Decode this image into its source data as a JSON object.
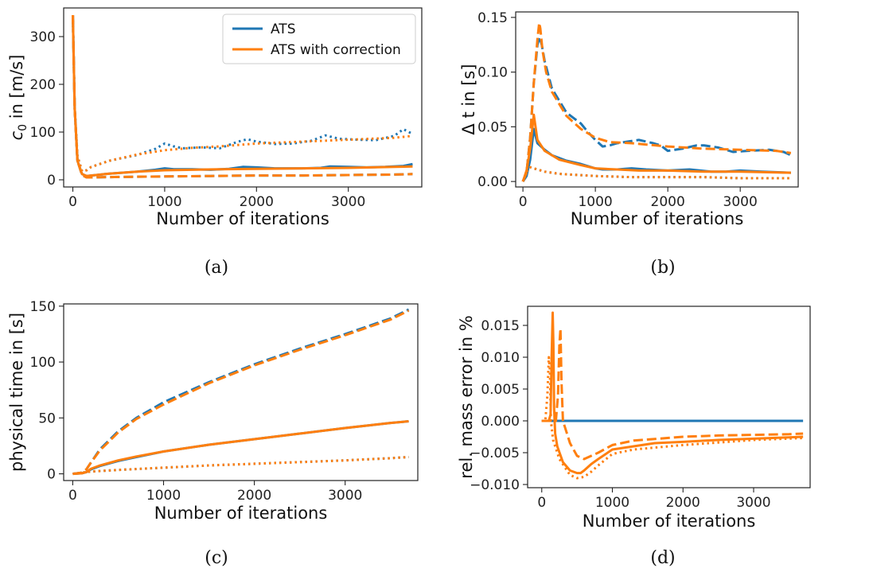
{
  "colors": {
    "ats": "#1f77b4",
    "ats_correction": "#ff7f0e"
  },
  "legend": {
    "entries": [
      {
        "name": "ATS",
        "color": "#1f77b4"
      },
      {
        "name": "ATS with correction",
        "color": "#ff7f0e"
      }
    ],
    "placement": "top-right of panel (a)"
  },
  "chart_data": [
    {
      "type": "line",
      "caption": "(a)",
      "xlabel": "Number of iterations",
      "ylabel": "c0 in [m/s]",
      "ylabel_parts": {
        "symbol": "c",
        "subscript": "0",
        "rest": " in [m/s]"
      },
      "xlim": [
        -100,
        3800
      ],
      "ylim": [
        -15,
        360
      ],
      "xticks": [
        0,
        1000,
        2000,
        3000
      ],
      "yticks": [
        0,
        100,
        200,
        300
      ],
      "grid": false,
      "series": [
        {
          "name": "ATS",
          "color": "#1f77b4",
          "dash": "solid",
          "x": [
            0,
            20,
            50,
            100,
            150,
            200,
            400,
            700,
            900,
            1000,
            1100,
            1300,
            1500,
            1700,
            1850,
            2000,
            2200,
            2500,
            2700,
            2800,
            3000,
            3200,
            3400,
            3600,
            3700
          ],
          "y": [
            345,
            150,
            40,
            12,
            8,
            9,
            13,
            17,
            21,
            24,
            22,
            22,
            21,
            23,
            27,
            26,
            24,
            24,
            25,
            28,
            27,
            26,
            27,
            29,
            33
          ]
        },
        {
          "name": "ATS",
          "color": "#1f77b4",
          "dash": "dashed",
          "x": [
            0,
            20,
            50,
            100,
            150,
            200,
            500,
            1000,
            1500,
            2000,
            2500,
            3000,
            3500,
            3700
          ],
          "y": [
            345,
            150,
            40,
            10,
            5,
            5,
            6,
            7,
            8,
            9,
            9,
            10,
            11,
            12
          ]
        },
        {
          "name": "ATS",
          "color": "#1f77b4",
          "dash": "dotted",
          "x": [
            0,
            20,
            50,
            100,
            150,
            200,
            400,
            700,
            900,
            1000,
            1100,
            1200,
            1400,
            1600,
            1800,
            1900,
            2000,
            2200,
            2400,
            2600,
            2750,
            2900,
            3100,
            3300,
            3500,
            3600,
            3700
          ],
          "y": [
            345,
            150,
            50,
            18,
            20,
            27,
            40,
            52,
            65,
            76,
            70,
            66,
            68,
            66,
            80,
            85,
            80,
            75,
            76,
            82,
            93,
            86,
            84,
            83,
            92,
            106,
            96
          ]
        },
        {
          "name": "ATS with correction",
          "color": "#ff7f0e",
          "dash": "solid",
          "x": [
            0,
            20,
            50,
            100,
            150,
            200,
            400,
            700,
            1000,
            1300,
            1600,
            2000,
            2500,
            3000,
            3500,
            3700
          ],
          "y": [
            345,
            150,
            40,
            12,
            8,
            9,
            13,
            17,
            20,
            21,
            22,
            23,
            24,
            25,
            27,
            28
          ]
        },
        {
          "name": "ATS with correction",
          "color": "#ff7f0e",
          "dash": "dashed",
          "x": [
            0,
            20,
            50,
            100,
            150,
            200,
            500,
            1000,
            1500,
            2000,
            2500,
            3000,
            3500,
            3700
          ],
          "y": [
            345,
            150,
            40,
            10,
            5,
            5,
            6,
            7,
            8,
            9,
            9,
            10,
            11,
            12
          ]
        },
        {
          "name": "ATS with correction",
          "color": "#ff7f0e",
          "dash": "dotted",
          "x": [
            0,
            20,
            50,
            100,
            150,
            200,
            400,
            700,
            1000,
            1300,
            1600,
            2000,
            2500,
            3000,
            3500,
            3700
          ],
          "y": [
            345,
            150,
            50,
            18,
            20,
            27,
            40,
            53,
            62,
            67,
            70,
            76,
            80,
            84,
            88,
            92
          ]
        }
      ]
    },
    {
      "type": "line",
      "caption": "(b)",
      "xlabel": "Number of iterations",
      "ylabel": "Δ t in [s]",
      "xlim": [
        -100,
        3800
      ],
      "ylim": [
        -0.005,
        0.155
      ],
      "xticks": [
        0,
        1000,
        2000,
        3000
      ],
      "yticks": [
        0.0,
        0.05,
        0.1,
        0.15
      ],
      "ytick_labels": [
        "0.00",
        "0.05",
        "0.10",
        "0.15"
      ],
      "grid": false,
      "series": [
        {
          "name": "ATS",
          "color": "#1f77b4",
          "dash": "solid",
          "x": [
            0,
            50,
            100,
            150,
            200,
            300,
            400,
            600,
            800,
            1000,
            1100,
            1300,
            1500,
            1700,
            2000,
            2300,
            2600,
            2800,
            3000,
            3300,
            3700
          ],
          "y": [
            0,
            0.005,
            0.02,
            0.048,
            0.035,
            0.029,
            0.024,
            0.019,
            0.016,
            0.012,
            0.011,
            0.011,
            0.012,
            0.011,
            0.01,
            0.011,
            0.009,
            0.009,
            0.01,
            0.009,
            0.008
          ]
        },
        {
          "name": "ATS",
          "color": "#1f77b4",
          "dash": "dashed",
          "x": [
            0,
            50,
            100,
            150,
            200,
            230,
            260,
            300,
            400,
            600,
            800,
            900,
            1000,
            1100,
            1200,
            1300,
            1500,
            1600,
            1800,
            1900,
            2000,
            2200,
            2400,
            2500,
            2700,
            2900,
            3100,
            3400,
            3600,
            3700
          ],
          "y": [
            0,
            0.008,
            0.04,
            0.09,
            0.125,
            0.132,
            0.125,
            0.11,
            0.085,
            0.063,
            0.053,
            0.045,
            0.038,
            0.032,
            0.033,
            0.035,
            0.037,
            0.038,
            0.035,
            0.033,
            0.028,
            0.03,
            0.033,
            0.033,
            0.031,
            0.027,
            0.028,
            0.029,
            0.027,
            0.024
          ]
        },
        {
          "name": "ATS",
          "color": "#1f77b4",
          "dash": "dotted",
          "x": [
            0,
            50,
            100,
            150,
            300,
            500,
            1000,
            1500,
            2000,
            2500,
            3000,
            3700
          ],
          "y": [
            0,
            0.009,
            0.013,
            0.012,
            0.009,
            0.007,
            0.005,
            0.004,
            0.004,
            0.004,
            0.003,
            0.003
          ]
        },
        {
          "name": "ATS with correction",
          "color": "#ff7f0e",
          "dash": "solid",
          "x": [
            0,
            50,
            100,
            150,
            200,
            300,
            500,
            800,
            1000,
            1300,
            1600,
            2000,
            2500,
            3000,
            3700
          ],
          "y": [
            0,
            0.01,
            0.03,
            0.061,
            0.038,
            0.028,
            0.02,
            0.015,
            0.012,
            0.011,
            0.01,
            0.01,
            0.009,
            0.009,
            0.008
          ]
        },
        {
          "name": "ATS with correction",
          "color": "#ff7f0e",
          "dash": "dashed",
          "x": [
            0,
            50,
            100,
            150,
            200,
            225,
            240,
            270,
            320,
            400,
            600,
            800,
            1000,
            1200,
            1500,
            2000,
            2500,
            3000,
            3500,
            3700
          ],
          "y": [
            0,
            0.008,
            0.04,
            0.09,
            0.13,
            0.145,
            0.14,
            0.12,
            0.1,
            0.082,
            0.06,
            0.048,
            0.04,
            0.036,
            0.035,
            0.032,
            0.03,
            0.029,
            0.028,
            0.026
          ]
        },
        {
          "name": "ATS with correction",
          "color": "#ff7f0e",
          "dash": "dotted",
          "x": [
            0,
            50,
            100,
            150,
            300,
            500,
            1000,
            1500,
            2000,
            2500,
            3000,
            3700
          ],
          "y": [
            0,
            0.009,
            0.013,
            0.012,
            0.009,
            0.007,
            0.005,
            0.004,
            0.004,
            0.004,
            0.003,
            0.003
          ]
        }
      ]
    },
    {
      "type": "line",
      "caption": "(c)",
      "xlabel": "Number of iterations",
      "ylabel": "physical time in [s]",
      "xlim": [
        -100,
        3800
      ],
      "ylim": [
        -6,
        152
      ],
      "xticks": [
        0,
        1000,
        2000,
        3000
      ],
      "yticks": [
        0,
        50,
        100,
        150
      ],
      "grid": false,
      "series": [
        {
          "name": "ATS",
          "color": "#1f77b4",
          "dash": "solid",
          "x": [
            0,
            100,
            150,
            200,
            300,
            500,
            700,
            1000,
            1500,
            2000,
            2500,
            3000,
            3500,
            3700
          ],
          "y": [
            0,
            0.5,
            1.5,
            4,
            7,
            11.5,
            15,
            20,
            26,
            31,
            36,
            41,
            45.5,
            47
          ]
        },
        {
          "name": "ATS",
          "color": "#1f77b4",
          "dash": "dashed",
          "x": [
            0,
            100,
            150,
            200,
            300,
            500,
            700,
            1000,
            1500,
            2000,
            2500,
            3000,
            3500,
            3700
          ],
          "y": [
            0,
            1,
            4,
            10,
            22,
            38,
            50,
            64,
            82,
            98,
            112,
            125,
            139,
            147
          ]
        },
        {
          "name": "ATS",
          "color": "#1f77b4",
          "dash": "dotted",
          "x": [
            0,
            100,
            200,
            500,
            1000,
            1500,
            2000,
            2500,
            3000,
            3500,
            3700
          ],
          "y": [
            0,
            1,
            2,
            3.5,
            5.5,
            7.5,
            9,
            10.5,
            12,
            14,
            15
          ]
        },
        {
          "name": "ATS with correction",
          "color": "#ff7f0e",
          "dash": "solid",
          "x": [
            0,
            100,
            150,
            200,
            300,
            500,
            700,
            1000,
            1500,
            2000,
            2500,
            3000,
            3500,
            3700
          ],
          "y": [
            0,
            0.5,
            1.5,
            4.5,
            7.5,
            12,
            15.5,
            20,
            26,
            31,
            36,
            41,
            45.5,
            47
          ]
        },
        {
          "name": "ATS with correction",
          "color": "#ff7f0e",
          "dash": "dashed",
          "x": [
            0,
            100,
            150,
            200,
            300,
            500,
            700,
            1000,
            1500,
            2000,
            2500,
            3000,
            3500,
            3700
          ],
          "y": [
            0,
            1,
            4,
            10,
            21,
            37,
            49,
            62,
            81,
            97,
            111,
            124,
            138,
            146
          ]
        },
        {
          "name": "ATS with correction",
          "color": "#ff7f0e",
          "dash": "dotted",
          "x": [
            0,
            100,
            200,
            500,
            1000,
            1500,
            2000,
            2500,
            3000,
            3500,
            3700
          ],
          "y": [
            0,
            1,
            2,
            3.5,
            5.5,
            7.5,
            9,
            10.5,
            12,
            14,
            15
          ]
        }
      ]
    },
    {
      "type": "line",
      "caption": "(d)",
      "xlabel": "Number of iterations",
      "ylabel": "rel. mass error in %",
      "xlim": [
        -200,
        3800
      ],
      "ylim": [
        -0.0105,
        0.018
      ],
      "xticks": [
        0,
        1000,
        2000,
        3000
      ],
      "yticks": [
        -0.01,
        -0.005,
        0.0,
        0.005,
        0.01,
        0.015
      ],
      "ytick_labels": [
        "−0.010",
        "−0.005",
        "0.000",
        "0.005",
        "0.010",
        "0.015"
      ],
      "grid": false,
      "series": [
        {
          "name": "ATS",
          "color": "#1f77b4",
          "dash": "solid",
          "x": [
            0,
            3700
          ],
          "y": [
            0,
            0
          ]
        },
        {
          "name": "ATS with correction",
          "color": "#ff7f0e",
          "dash": "solid",
          "x": [
            0,
            100,
            125,
            140,
            155,
            165,
            175,
            190,
            220,
            300,
            400,
            500,
            550,
            600,
            700,
            800,
            1000,
            1300,
            1600,
            2000,
            2500,
            3000,
            3500,
            3700
          ],
          "y": [
            0,
            0,
            0.001,
            0.01,
            0.017,
            0.012,
            0.002,
            -0.002,
            -0.004,
            -0.0065,
            -0.0078,
            -0.0082,
            -0.0082,
            -0.0078,
            -0.0068,
            -0.006,
            -0.0045,
            -0.004,
            -0.0035,
            -0.0033,
            -0.003,
            -0.0028,
            -0.0026,
            -0.0025
          ]
        },
        {
          "name": "ATS with correction",
          "color": "#ff7f0e",
          "dash": "dashed",
          "x": [
            0,
            200,
            230,
            250,
            265,
            280,
            300,
            400,
            500,
            600,
            700,
            800,
            1000,
            1300,
            2000,
            2500,
            3000,
            3500,
            3700
          ],
          "y": [
            0,
            0,
            0.004,
            0.012,
            0.0145,
            0.006,
            0.0,
            -0.0035,
            -0.0055,
            -0.006,
            -0.0055,
            -0.005,
            -0.0038,
            -0.0031,
            -0.0025,
            -0.0023,
            -0.0022,
            -0.0021,
            -0.002
          ]
        },
        {
          "name": "ATS with correction",
          "color": "#ff7f0e",
          "dash": "dotted",
          "x": [
            0,
            50,
            80,
            100,
            115,
            130,
            160,
            250,
            400,
            500,
            600,
            700,
            800,
            1000,
            1300,
            2000,
            3000,
            3700
          ],
          "y": [
            0,
            0,
            0.004,
            0.01,
            0.008,
            0.0,
            -0.003,
            -0.006,
            -0.0085,
            -0.009,
            -0.0088,
            -0.008,
            -0.007,
            -0.0052,
            -0.0045,
            -0.0038,
            -0.003,
            -0.0027
          ]
        }
      ]
    }
  ]
}
